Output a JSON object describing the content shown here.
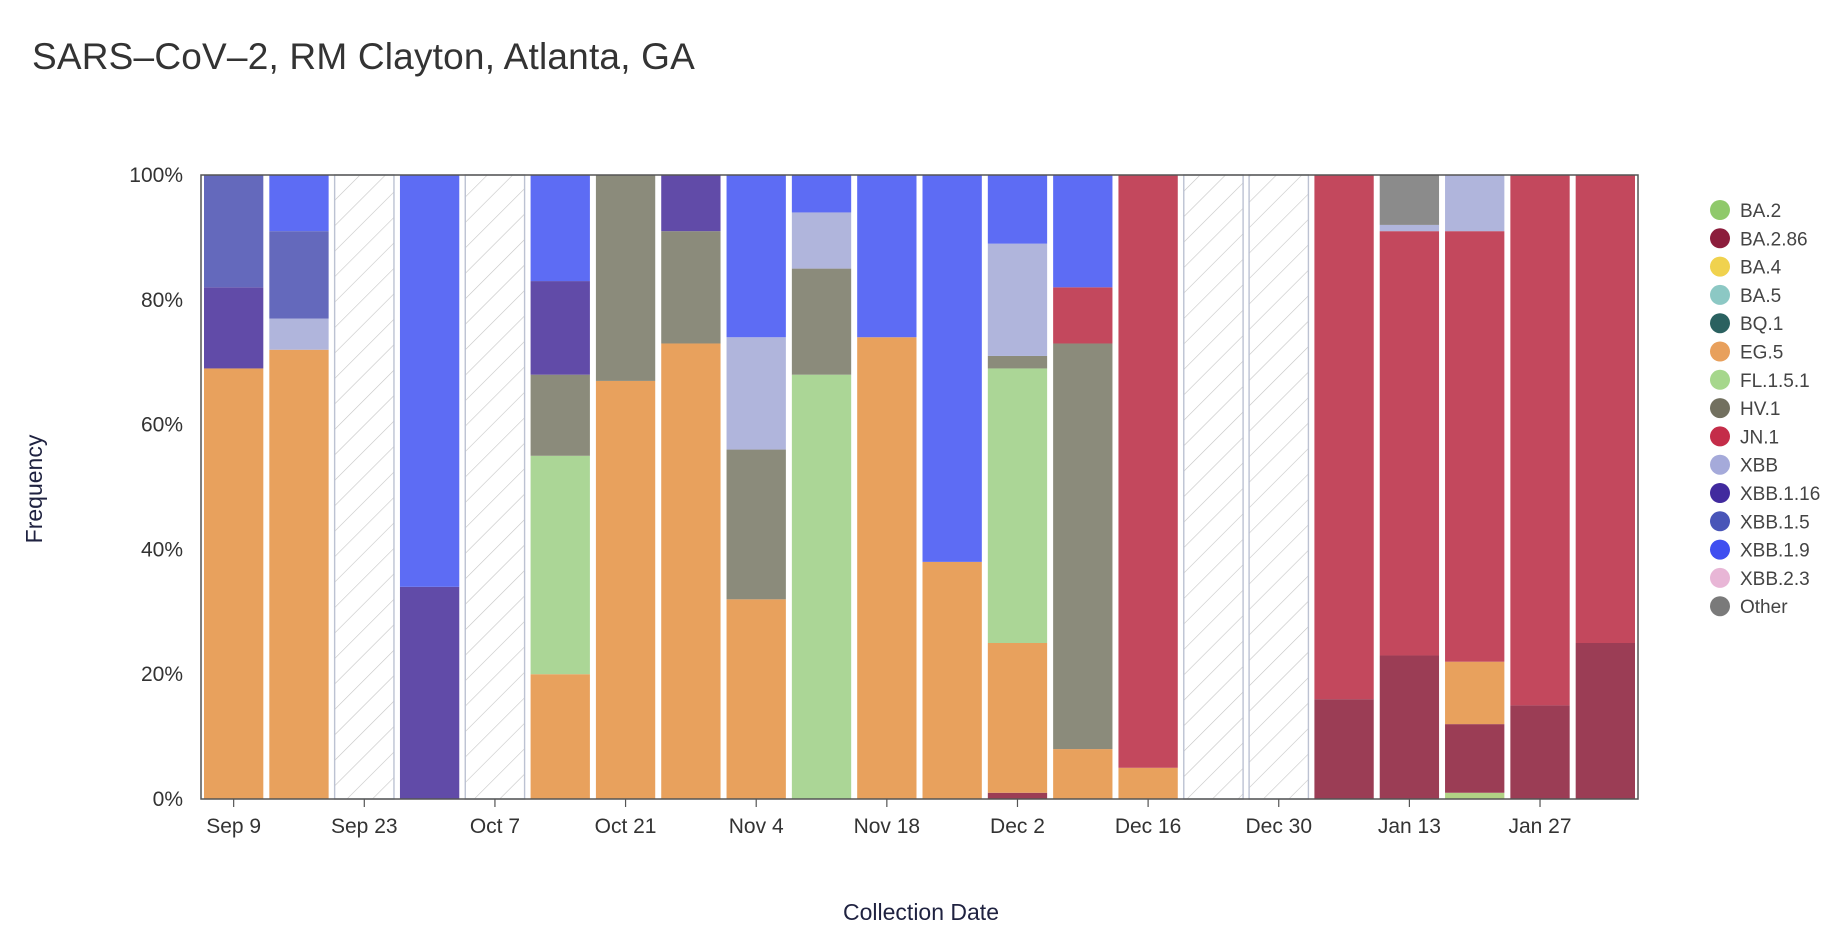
{
  "chart_data": {
    "type": "bar",
    "stacked": true,
    "title": "SARS–CoV–2, RM Clayton, Atlanta, GA",
    "xlabel": "Collection Date",
    "ylabel": "Frequency",
    "ylim": [
      0,
      100
    ],
    "y_ticks": [
      "0%",
      "20%",
      "40%",
      "60%",
      "80%",
      "100%"
    ],
    "x_tick_labels": [
      "Sep 9",
      "Sep 23",
      "Oct 7",
      "Oct 21",
      "Nov 4",
      "Nov 18",
      "Dec 2",
      "Dec 16",
      "Dec 30",
      "Jan 13",
      "Jan 27"
    ],
    "x_tick_every": 2,
    "legend": [
      {
        "name": "BA.2",
        "color": "#8fc96a"
      },
      {
        "name": "BA.2.86",
        "color": "#8c1d3c"
      },
      {
        "name": "BA.4",
        "color": "#f0d24e"
      },
      {
        "name": "BA.5",
        "color": "#8cc8c4"
      },
      {
        "name": "BQ.1",
        "color": "#2a6160"
      },
      {
        "name": "EG.5",
        "color": "#e8a05c"
      },
      {
        "name": "FL.1.5.1",
        "color": "#a6d78c"
      },
      {
        "name": "HV.1",
        "color": "#72705f"
      },
      {
        "name": "JN.1",
        "color": "#c42d49"
      },
      {
        "name": "XBB",
        "color": "#a5aada"
      },
      {
        "name": "XBB.1.16",
        "color": "#412a9e"
      },
      {
        "name": "XBB.1.5",
        "color": "#4955b8"
      },
      {
        "name": "XBB.1.9",
        "color": "#3f4ef0"
      },
      {
        "name": "XBB.2.3",
        "color": "#e8b6d6"
      },
      {
        "name": "Other",
        "color": "#7a7a7a"
      }
    ],
    "series_colors": {
      "BA.2": "#b1d285",
      "BA.2.86": "#9b3d55",
      "EG.5": "#e8a15d",
      "FL.1.5.1": "#abd696",
      "HV.1": "#8b8b7b",
      "JN.1": "#c3485d",
      "XBB": "#b0b5dc",
      "XBB.1.16": "#614ba8",
      "XBB.1.5": "#6469bc",
      "XBB.1.9": "#5d6cf4",
      "Other": "#8b8b8b"
    },
    "bars": [
      {
        "segments": [
          {
            "name": "EG.5",
            "value": 69
          },
          {
            "name": "XBB.1.16",
            "value": 13
          },
          {
            "name": "XBB.1.5",
            "value": 18
          }
        ]
      },
      {
        "segments": [
          {
            "name": "EG.5",
            "value": 72
          },
          {
            "name": "XBB",
            "value": 5
          },
          {
            "name": "XBB.1.5",
            "value": 14
          },
          {
            "name": "XBB.1.9",
            "value": 9
          }
        ]
      },
      {
        "empty": true,
        "segments": []
      },
      {
        "segments": [
          {
            "name": "XBB.1.16",
            "value": 34
          },
          {
            "name": "XBB.1.9",
            "value": 66
          }
        ]
      },
      {
        "empty": true,
        "segments": []
      },
      {
        "segments": [
          {
            "name": "EG.5",
            "value": 20
          },
          {
            "name": "FL.1.5.1",
            "value": 35
          },
          {
            "name": "HV.1",
            "value": 13
          },
          {
            "name": "XBB.1.16",
            "value": 15
          },
          {
            "name": "XBB.1.9",
            "value": 17
          }
        ]
      },
      {
        "segments": [
          {
            "name": "EG.5",
            "value": 67
          },
          {
            "name": "HV.1",
            "value": 33
          }
        ]
      },
      {
        "segments": [
          {
            "name": "EG.5",
            "value": 73
          },
          {
            "name": "HV.1",
            "value": 18
          },
          {
            "name": "XBB.1.16",
            "value": 9
          }
        ]
      },
      {
        "segments": [
          {
            "name": "EG.5",
            "value": 32
          },
          {
            "name": "HV.1",
            "value": 24
          },
          {
            "name": "XBB",
            "value": 18
          },
          {
            "name": "XBB.1.9",
            "value": 26
          }
        ]
      },
      {
        "segments": [
          {
            "name": "FL.1.5.1",
            "value": 68
          },
          {
            "name": "HV.1",
            "value": 17
          },
          {
            "name": "XBB",
            "value": 9
          },
          {
            "name": "XBB.1.9",
            "value": 6
          }
        ]
      },
      {
        "segments": [
          {
            "name": "EG.5",
            "value": 74
          },
          {
            "name": "XBB.1.9",
            "value": 26
          }
        ]
      },
      {
        "segments": [
          {
            "name": "EG.5",
            "value": 38
          },
          {
            "name": "XBB.1.9",
            "value": 62
          }
        ]
      },
      {
        "segments": [
          {
            "name": "BA.2.86",
            "value": 1
          },
          {
            "name": "EG.5",
            "value": 24
          },
          {
            "name": "FL.1.5.1",
            "value": 44
          },
          {
            "name": "HV.1",
            "value": 2
          },
          {
            "name": "XBB",
            "value": 18
          },
          {
            "name": "XBB.1.9",
            "value": 11
          }
        ]
      },
      {
        "segments": [
          {
            "name": "EG.5",
            "value": 8
          },
          {
            "name": "HV.1",
            "value": 65
          },
          {
            "name": "JN.1",
            "value": 9
          },
          {
            "name": "XBB.1.9",
            "value": 18
          }
        ]
      },
      {
        "segments": [
          {
            "name": "EG.5",
            "value": 5
          },
          {
            "name": "JN.1",
            "value": 95
          }
        ]
      },
      {
        "empty": true,
        "segments": []
      },
      {
        "empty": true,
        "segments": []
      },
      {
        "segments": [
          {
            "name": "BA.2.86",
            "value": 16
          },
          {
            "name": "JN.1",
            "value": 84
          }
        ]
      },
      {
        "segments": [
          {
            "name": "BA.2.86",
            "value": 23
          },
          {
            "name": "JN.1",
            "value": 68
          },
          {
            "name": "XBB",
            "value": 1
          },
          {
            "name": "Other",
            "value": 8
          }
        ]
      },
      {
        "segments": [
          {
            "name": "BA.2",
            "value": 1
          },
          {
            "name": "BA.2.86",
            "value": 11
          },
          {
            "name": "EG.5",
            "value": 10
          },
          {
            "name": "JN.1",
            "value": 69
          },
          {
            "name": "XBB",
            "value": 9
          }
        ]
      },
      {
        "segments": [
          {
            "name": "BA.2.86",
            "value": 15
          },
          {
            "name": "JN.1",
            "value": 85
          }
        ]
      },
      {
        "segments": [
          {
            "name": "BA.2.86",
            "value": 25
          },
          {
            "name": "JN.1",
            "value": 75
          }
        ]
      }
    ]
  }
}
